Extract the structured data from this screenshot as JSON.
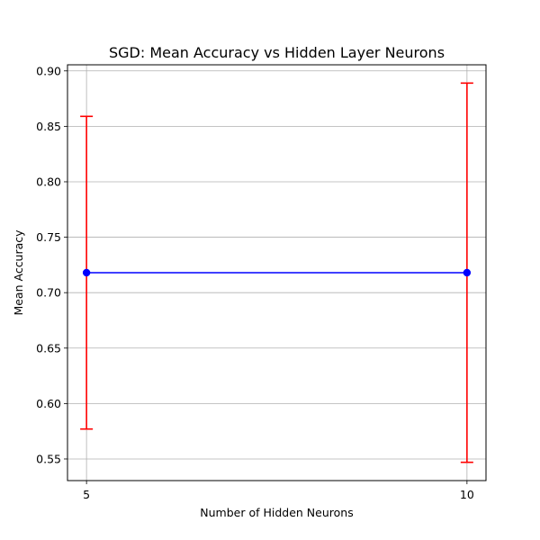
{
  "chart_data": {
    "type": "line",
    "title": "SGD: Mean Accuracy vs Hidden Layer Neurons",
    "xlabel": "Number of Hidden Neurons",
    "ylabel": "Mean Accuracy",
    "x": [
      5,
      10
    ],
    "xticks": [
      5,
      10
    ],
    "xtick_labels": [
      "5",
      "10"
    ],
    "xlim": [
      4.75,
      10.25
    ],
    "ylim": [
      0.5305,
      0.9055
    ],
    "yticks": [
      0.55,
      0.6,
      0.65,
      0.7,
      0.75,
      0.8,
      0.85,
      0.9
    ],
    "ytick_labels": [
      "0.55",
      "0.60",
      "0.65",
      "0.70",
      "0.75",
      "0.80",
      "0.85",
      "0.90"
    ],
    "grid": true,
    "series": [
      {
        "values": [
          0.718,
          0.718
        ],
        "error": [
          0.141,
          0.171
        ],
        "line_color": "#0000ff",
        "error_color": "#ff0000"
      }
    ]
  }
}
